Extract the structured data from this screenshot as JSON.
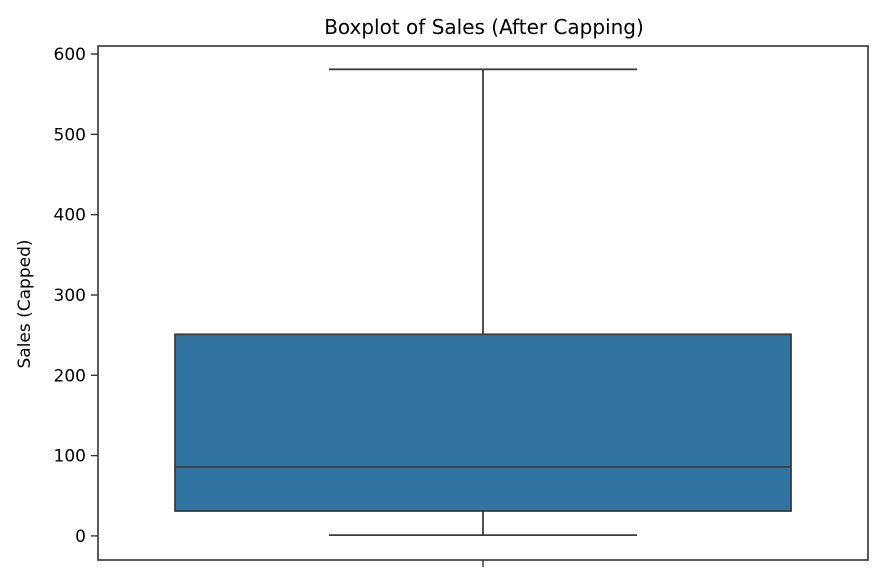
{
  "chart_data": {
    "type": "boxplot",
    "title": "Boxplot of Sales (After Capping)",
    "xlabel": "",
    "ylabel": "Sales (Capped)",
    "ylim": [
      -30,
      610
    ],
    "yticks": [
      0,
      100,
      200,
      300,
      400,
      500,
      600
    ],
    "grid": false,
    "legend": "none",
    "box_color": "#3274a1",
    "line_color": "#3d3d3d",
    "boxes": [
      {
        "whisker_low": 1,
        "q1": 31,
        "median": 86,
        "q3": 251,
        "whisker_high": 581
      }
    ]
  }
}
